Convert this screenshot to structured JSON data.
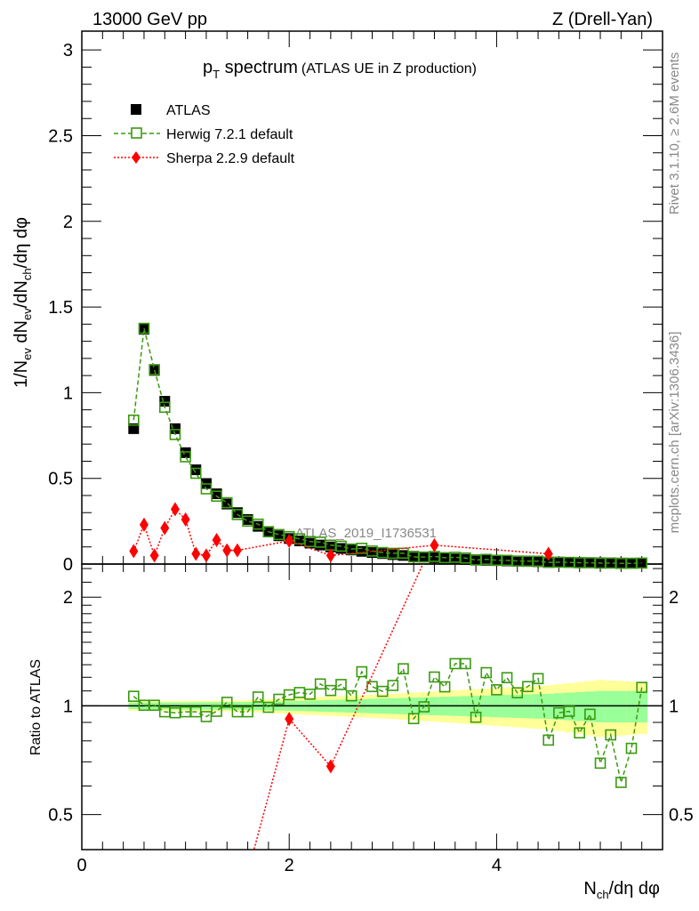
{
  "header": {
    "left": "13000 GeV pp",
    "right": "Z (Drell-Yan)"
  },
  "side": {
    "rivet": "Rivet 3.1.10, ≥ 2.6M events",
    "mcplots": "mcplots.cern.ch [arXiv:1306.3436]"
  },
  "watermark": "ATLAS_2019_I1736531",
  "chart_data": {
    "type": "line",
    "title": "p",
    "title_sub": "T",
    "title_main": " spectrum",
    "title_note": "(ATLAS UE in Z production)",
    "ylabel_parts": [
      "1/N",
      "ev",
      " dN",
      "ev",
      "/dN",
      "ch",
      "/dη dφ"
    ],
    "xlabel_parts": [
      "N",
      "ch",
      "/dη dφ"
    ],
    "ratio_ylabel": "Ratio to ATLAS",
    "xlim": [
      0,
      5.6
    ],
    "ylim": [
      0,
      3.11
    ],
    "ratio_ylim": [
      0.4,
      2.47
    ],
    "ratio_scale": "log",
    "xticks": [
      "0",
      "2",
      "4"
    ],
    "xtick_values": [
      0,
      2,
      4
    ],
    "yticks": [
      "0",
      "0.5",
      "1",
      "1.5",
      "2",
      "2.5",
      "3"
    ],
    "ytick_values": [
      0,
      0.5,
      1,
      1.5,
      2,
      2.5,
      3
    ],
    "ratio_yticks": [
      "0.5",
      "1",
      "2"
    ],
    "ratio_ytick_values": [
      0.5,
      1,
      2
    ],
    "legend": {
      "placement": "top-left",
      "entries": [
        "ATLAS",
        "Herwig 7.2.1 default",
        "Sherpa 2.2.9 default"
      ]
    },
    "colors": {
      "atlas": "#000000",
      "herwig": "#3a9a10",
      "sherpa": "#ff0000",
      "band_inner": "#99ff99",
      "band_outer": "#ffff99"
    },
    "x": [
      0.5,
      0.6,
      0.7,
      0.8,
      0.9,
      1.0,
      1.1,
      1.2,
      1.3,
      1.4,
      1.5,
      1.6,
      1.7,
      1.8,
      1.9,
      2.0,
      2.1,
      2.2,
      2.3,
      2.4,
      2.5,
      2.6,
      2.7,
      2.8,
      2.9,
      3.0,
      3.1,
      3.2,
      3.3,
      3.4,
      3.5,
      3.6,
      3.7,
      3.8,
      3.9,
      4.0,
      4.1,
      4.2,
      4.3,
      4.4,
      4.5,
      4.6,
      4.7,
      4.8,
      4.9,
      5.0,
      5.1,
      5.2,
      5.3,
      5.4
    ],
    "atlas": [
      0.79,
      1.37,
      1.13,
      0.95,
      0.79,
      0.65,
      0.55,
      0.47,
      0.41,
      0.35,
      0.3,
      0.26,
      0.22,
      0.19,
      0.165,
      0.149,
      0.135,
      0.122,
      0.111,
      0.1,
      0.091,
      0.082,
      0.074,
      0.067,
      0.061,
      0.055,
      0.05,
      0.045,
      0.041,
      0.037,
      0.033,
      0.03,
      0.027,
      0.025,
      0.022,
      0.02,
      0.018,
      0.016,
      0.015,
      0.014,
      0.012,
      0.011,
      0.01,
      0.009,
      0.008,
      0.0074,
      0.0067,
      0.006,
      0.0055,
      0.005
    ],
    "herwig_ratio": [
      1.063,
      1.004,
      1.004,
      0.963,
      0.957,
      0.963,
      0.963,
      0.934,
      0.966,
      1.023,
      0.963,
      0.963,
      1.058,
      0.991,
      1.043,
      1.073,
      1.089,
      1.077,
      1.15,
      1.103,
      1.146,
      1.066,
      1.243,
      1.131,
      1.097,
      1.139,
      1.267,
      0.922,
      0.994,
      1.202,
      1.129,
      1.309,
      1.309,
      0.93,
      1.236,
      1.108,
      1.197,
      1.087,
      1.131,
      1.19,
      0.804,
      0.957,
      0.966,
      0.842,
      0.948,
      0.694,
      0.831,
      0.614,
      0.763,
      1.125
    ],
    "sherpa": {
      "x": [
        0.5,
        0.6,
        0.7,
        0.8,
        0.9,
        1.0,
        1.1,
        1.2,
        1.3,
        1.4,
        1.5,
        2.0,
        2.4,
        3.4,
        4.5
      ],
      "y": [
        0.075,
        0.23,
        0.05,
        0.21,
        0.32,
        0.26,
        0.06,
        0.05,
        0.14,
        0.08,
        0.08,
        0.135,
        0.05,
        0.11,
        0.06
      ]
    },
    "sherpa_ratio": {
      "x": [
        0.9,
        1.5,
        2.0,
        2.4,
        3.4
      ],
      "y": [
        0.35,
        0.27,
        0.92,
        0.68,
        2.9
      ]
    },
    "band": {
      "x": [
        0.4,
        1.5,
        2.0,
        3.0,
        4.0,
        4.5,
        5.0,
        5.5
      ],
      "inner": [
        0.02,
        0.025,
        0.03,
        0.05,
        0.07,
        0.08,
        0.1,
        0.1
      ],
      "outer": [
        0.03,
        0.035,
        0.05,
        0.08,
        0.12,
        0.14,
        0.18,
        0.16
      ]
    }
  }
}
